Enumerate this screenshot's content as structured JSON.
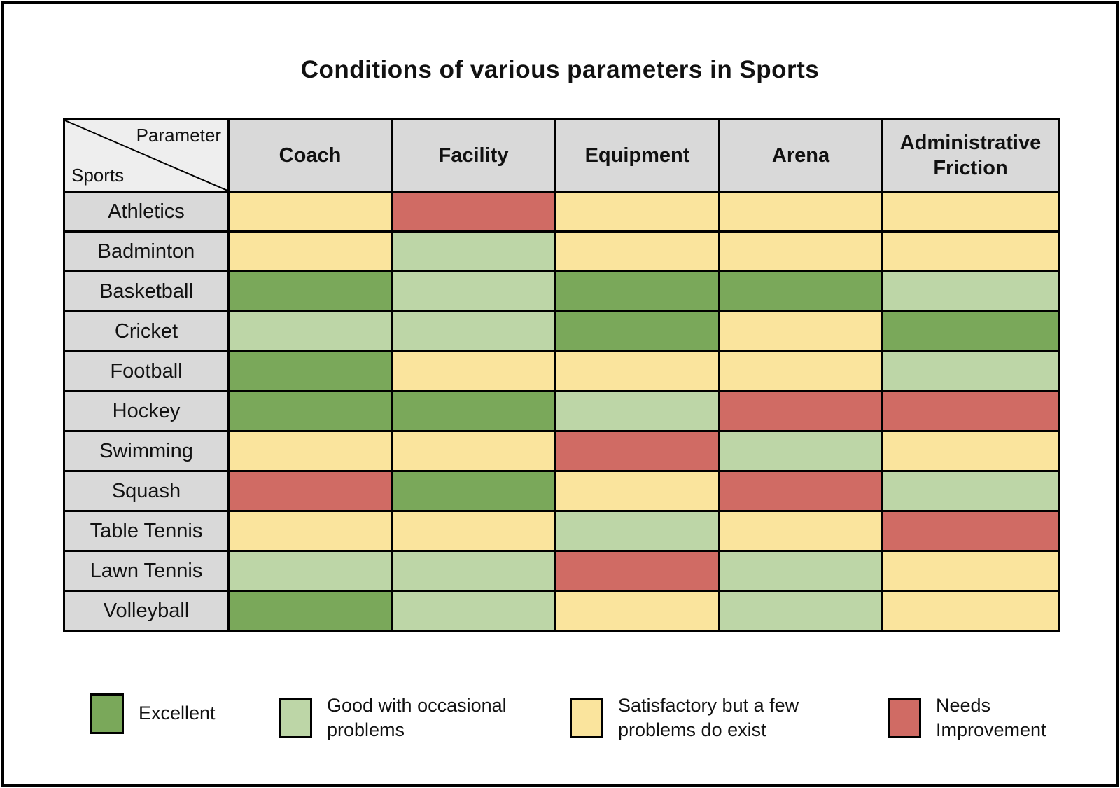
{
  "title": "Conditions of various parameters in Sports",
  "corner": {
    "top_right": "Parameter",
    "bottom_left": "Sports"
  },
  "chart_data": {
    "type": "heatmap",
    "title": "Conditions of various parameters in Sports",
    "columns": [
      "Coach",
      "Facility",
      "Equipment",
      "Arena",
      "Administrative Friction"
    ],
    "rows": [
      {
        "sport": "Athletics",
        "values": [
          "satisfactory",
          "needs_improvement",
          "satisfactory",
          "satisfactory",
          "satisfactory"
        ]
      },
      {
        "sport": "Badminton",
        "values": [
          "satisfactory",
          "good",
          "satisfactory",
          "satisfactory",
          "satisfactory"
        ]
      },
      {
        "sport": "Basketball",
        "values": [
          "excellent",
          "good",
          "excellent",
          "excellent",
          "good"
        ]
      },
      {
        "sport": "Cricket",
        "values": [
          "good",
          "good",
          "excellent",
          "satisfactory",
          "excellent"
        ]
      },
      {
        "sport": "Football",
        "values": [
          "excellent",
          "satisfactory",
          "satisfactory",
          "satisfactory",
          "good"
        ]
      },
      {
        "sport": "Hockey",
        "values": [
          "excellent",
          "excellent",
          "good",
          "needs_improvement",
          "needs_improvement"
        ]
      },
      {
        "sport": "Swimming",
        "values": [
          "satisfactory",
          "satisfactory",
          "needs_improvement",
          "good",
          "satisfactory"
        ]
      },
      {
        "sport": "Squash",
        "values": [
          "needs_improvement",
          "excellent",
          "satisfactory",
          "needs_improvement",
          "good"
        ]
      },
      {
        "sport": "Table Tennis",
        "values": [
          "satisfactory",
          "satisfactory",
          "good",
          "satisfactory",
          "needs_improvement"
        ]
      },
      {
        "sport": "Lawn Tennis",
        "values": [
          "good",
          "good",
          "needs_improvement",
          "good",
          "satisfactory"
        ]
      },
      {
        "sport": "Volleyball",
        "values": [
          "excellent",
          "good",
          "satisfactory",
          "good",
          "satisfactory"
        ]
      }
    ],
    "color_map": {
      "excellent": "#7aa85a",
      "good": "#bdd6a7",
      "satisfactory": "#fae49d",
      "needs_improvement": "#d06b64"
    },
    "colors": {
      "header_bg": "#d9d9d9",
      "corner_bg": "#eeeeee",
      "border": "#000000"
    },
    "legend_position": "bottom",
    "legend": [
      {
        "key": "excellent",
        "label": "Excellent"
      },
      {
        "key": "good",
        "label": "Good with occasional\nproblems"
      },
      {
        "key": "satisfactory",
        "label": "Satisfactory but a few\nproblems do exist"
      },
      {
        "key": "needs_improvement",
        "label": "Needs\nImprovement"
      }
    ]
  }
}
